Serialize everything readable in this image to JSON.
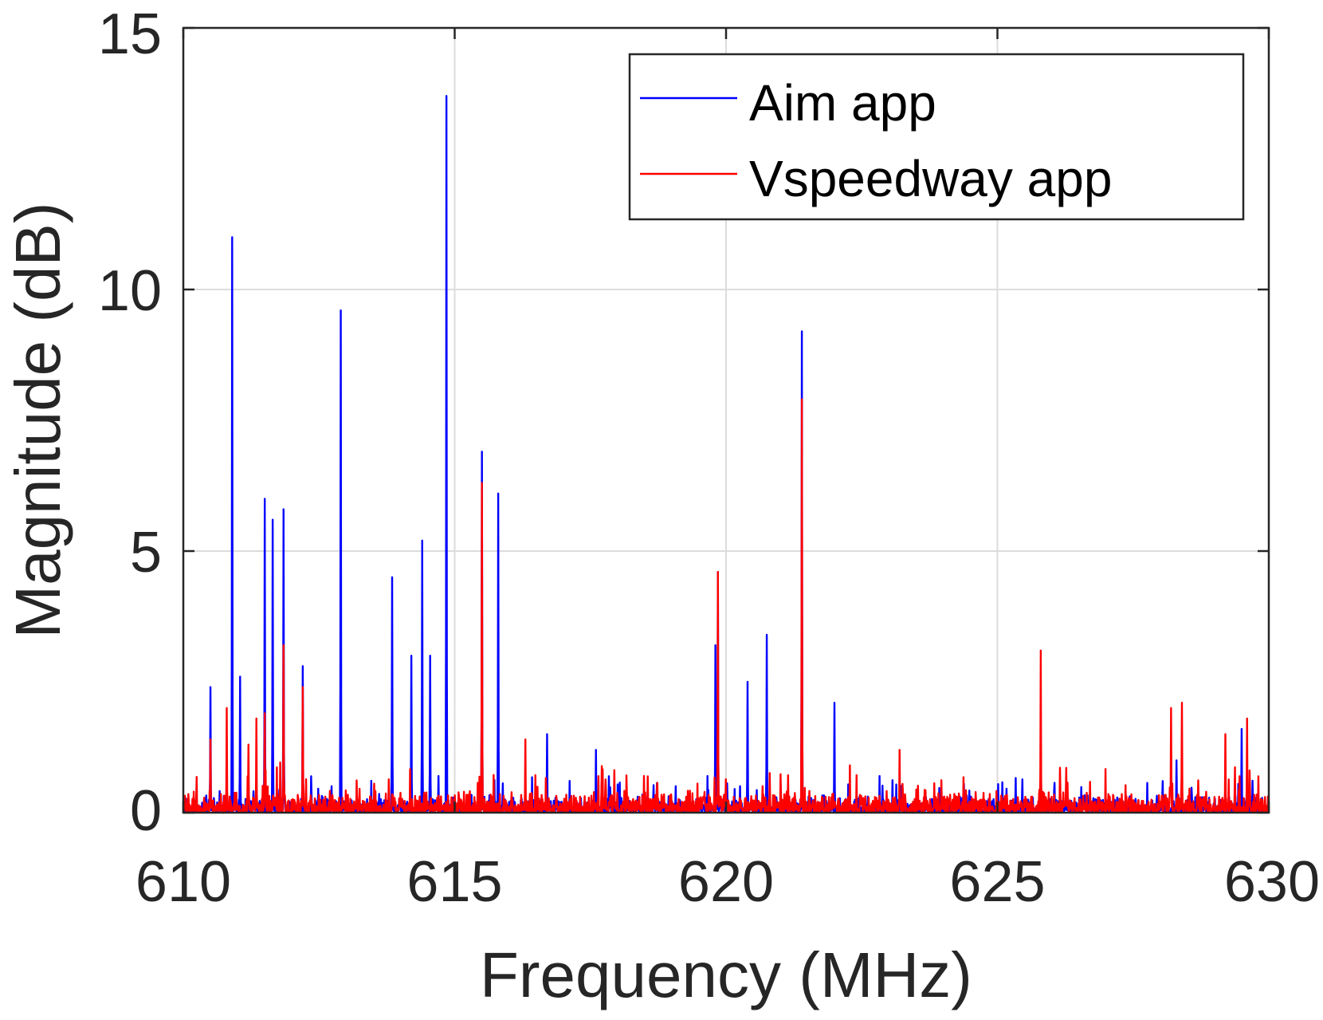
{
  "chart_data": {
    "type": "line",
    "title": "",
    "xlabel": "Frequency (MHz)",
    "ylabel": "Magnitude (dB)",
    "xlim": [
      610,
      630
    ],
    "ylim": [
      0,
      15
    ],
    "xticks": [
      610,
      615,
      620,
      625,
      630
    ],
    "yticks": [
      0,
      5,
      10,
      15
    ],
    "grid": true,
    "legend_position": "top-right",
    "series": [
      {
        "name": "Aim app",
        "color": "#0000ff",
        "noise_level": 0.35,
        "peaks": [
          {
            "x": 610.5,
            "y": 2.4
          },
          {
            "x": 610.9,
            "y": 11.0
          },
          {
            "x": 611.05,
            "y": 2.6
          },
          {
            "x": 611.5,
            "y": 6.0
          },
          {
            "x": 611.65,
            "y": 5.6
          },
          {
            "x": 611.85,
            "y": 5.8
          },
          {
            "x": 612.2,
            "y": 2.8
          },
          {
            "x": 612.9,
            "y": 9.6
          },
          {
            "x": 613.85,
            "y": 4.5
          },
          {
            "x": 614.2,
            "y": 3.0
          },
          {
            "x": 614.4,
            "y": 5.2
          },
          {
            "x": 614.55,
            "y": 3.0
          },
          {
            "x": 614.85,
            "y": 13.7
          },
          {
            "x": 615.5,
            "y": 6.9
          },
          {
            "x": 615.8,
            "y": 6.1
          },
          {
            "x": 616.7,
            "y": 1.5
          },
          {
            "x": 617.6,
            "y": 1.2
          },
          {
            "x": 619.8,
            "y": 3.2
          },
          {
            "x": 619.85,
            "y": 4.6
          },
          {
            "x": 620.4,
            "y": 2.5
          },
          {
            "x": 620.75,
            "y": 3.4
          },
          {
            "x": 621.4,
            "y": 9.2
          },
          {
            "x": 622.0,
            "y": 2.1
          },
          {
            "x": 628.3,
            "y": 1.0
          },
          {
            "x": 629.5,
            "y": 1.6
          }
        ]
      },
      {
        "name": "Vspeedway app",
        "color": "#ff0000",
        "noise_level": 0.45,
        "peaks": [
          {
            "x": 610.5,
            "y": 1.4
          },
          {
            "x": 610.8,
            "y": 2.0
          },
          {
            "x": 611.2,
            "y": 1.3
          },
          {
            "x": 611.35,
            "y": 1.8
          },
          {
            "x": 611.5,
            "y": 1.9
          },
          {
            "x": 611.85,
            "y": 3.2
          },
          {
            "x": 612.2,
            "y": 2.4
          },
          {
            "x": 615.5,
            "y": 6.3
          },
          {
            "x": 616.3,
            "y": 1.4
          },
          {
            "x": 619.85,
            "y": 4.6
          },
          {
            "x": 621.4,
            "y": 7.9
          },
          {
            "x": 623.2,
            "y": 1.2
          },
          {
            "x": 625.8,
            "y": 3.1
          },
          {
            "x": 628.2,
            "y": 2.0
          },
          {
            "x": 628.4,
            "y": 2.1
          },
          {
            "x": 629.2,
            "y": 1.5
          },
          {
            "x": 629.6,
            "y": 1.8
          }
        ]
      }
    ]
  }
}
